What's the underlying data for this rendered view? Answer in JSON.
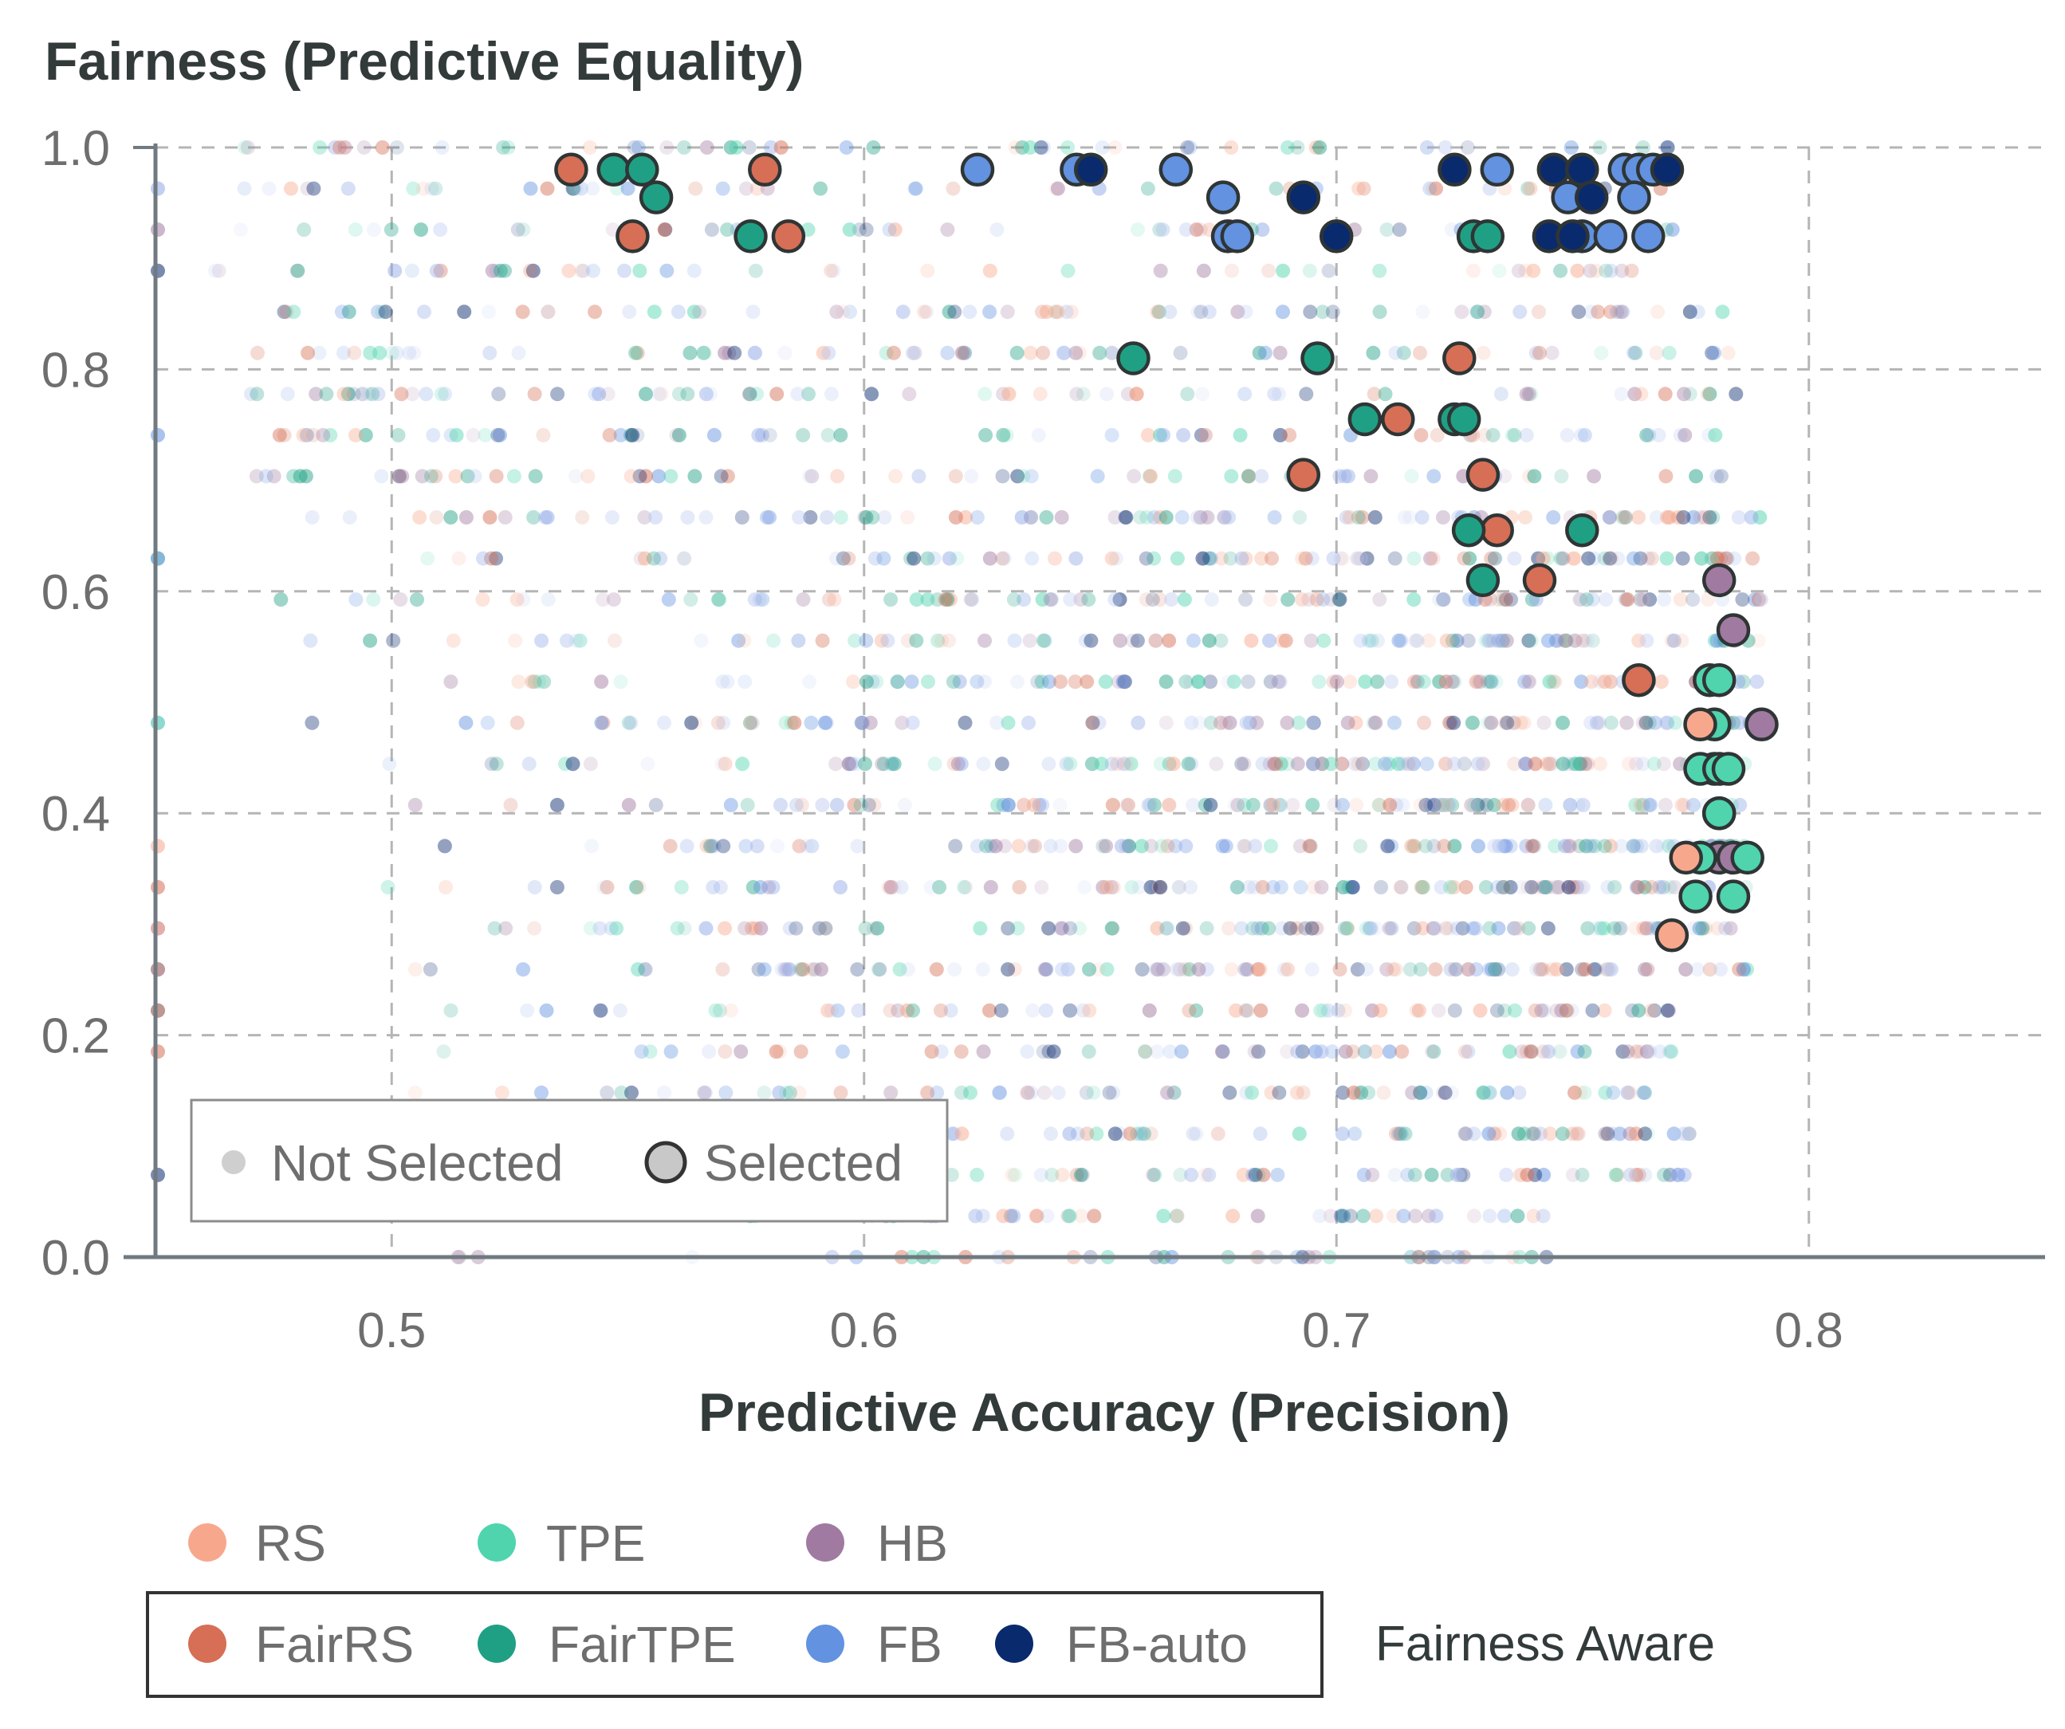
{
  "chart_data": {
    "type": "scatter",
    "title": "",
    "xlabel": "Predictive Accuracy (Precision)",
    "ylabel": "Fairness (Predictive Equality)",
    "xlim": [
      0.45,
      0.85
    ],
    "ylim": [
      0.0,
      1.0
    ],
    "x_ticks": [
      "0.5",
      "0.6",
      "0.7",
      "0.8"
    ],
    "y_ticks": [
      "0.0",
      "0.2",
      "0.4",
      "0.6",
      "0.8",
      "1.0"
    ],
    "grid": "dashed",
    "selection_legend": {
      "not_selected": "Not Selected",
      "selected": "Selected",
      "placement": "bottom-left"
    },
    "method_legend": {
      "row1": [
        {
          "name": "RS",
          "color": "#f7a88c"
        },
        {
          "name": "TPE",
          "color": "#4fd4ae"
        },
        {
          "name": "HB",
          "color": "#a07aa0"
        }
      ],
      "row2": [
        {
          "name": "FairRS",
          "color": "#d66f55"
        },
        {
          "name": "FairTPE",
          "color": "#1fa084"
        },
        {
          "name": "FB",
          "color": "#6292e0"
        },
        {
          "name": "FB-auto",
          "color": "#0a2a6e"
        }
      ],
      "fairness_aware_label": "Fairness Aware"
    },
    "selected_series": [
      {
        "name": "FairRS",
        "color": "#d66f55",
        "points": [
          [
            0.538,
            0.98
          ],
          [
            0.579,
            0.98
          ],
          [
            0.551,
            0.92
          ],
          [
            0.584,
            0.92
          ],
          [
            0.726,
            0.81
          ],
          [
            0.713,
            0.755
          ],
          [
            0.693,
            0.705
          ],
          [
            0.731,
            0.705
          ],
          [
            0.734,
            0.655
          ],
          [
            0.743,
            0.61
          ],
          [
            0.764,
            0.52
          ]
        ]
      },
      {
        "name": "FairTPE",
        "color": "#1fa084",
        "points": [
          [
            0.547,
            0.98
          ],
          [
            0.553,
            0.98
          ],
          [
            0.556,
            0.955
          ],
          [
            0.576,
            0.92
          ],
          [
            0.729,
            0.92
          ],
          [
            0.732,
            0.92
          ],
          [
            0.657,
            0.81
          ],
          [
            0.696,
            0.81
          ],
          [
            0.706,
            0.755
          ],
          [
            0.725,
            0.755
          ],
          [
            0.727,
            0.755
          ],
          [
            0.728,
            0.655
          ],
          [
            0.752,
            0.655
          ],
          [
            0.731,
            0.61
          ]
        ]
      },
      {
        "name": "FB",
        "color": "#6292e0",
        "points": [
          [
            0.624,
            0.98
          ],
          [
            0.645,
            0.98
          ],
          [
            0.666,
            0.98
          ],
          [
            0.734,
            0.98
          ],
          [
            0.761,
            0.98
          ],
          [
            0.764,
            0.98
          ],
          [
            0.767,
            0.98
          ],
          [
            0.676,
            0.955
          ],
          [
            0.749,
            0.955
          ],
          [
            0.763,
            0.955
          ],
          [
            0.677,
            0.92
          ],
          [
            0.679,
            0.92
          ],
          [
            0.752,
            0.92
          ],
          [
            0.758,
            0.92
          ],
          [
            0.766,
            0.92
          ]
        ]
      },
      {
        "name": "FB-auto",
        "color": "#0a2a6e",
        "points": [
          [
            0.648,
            0.98
          ],
          [
            0.725,
            0.98
          ],
          [
            0.746,
            0.98
          ],
          [
            0.752,
            0.98
          ],
          [
            0.77,
            0.98
          ],
          [
            0.693,
            0.955
          ],
          [
            0.754,
            0.955
          ],
          [
            0.7,
            0.92
          ],
          [
            0.745,
            0.92
          ],
          [
            0.75,
            0.92
          ]
        ]
      },
      {
        "name": "HB",
        "color": "#a07aa0",
        "points": [
          [
            0.781,
            0.61
          ],
          [
            0.784,
            0.565
          ],
          [
            0.79,
            0.48
          ],
          [
            0.78,
            0.44
          ],
          [
            0.781,
            0.4
          ],
          [
            0.781,
            0.36
          ],
          [
            0.784,
            0.36
          ]
        ]
      },
      {
        "name": "TPE",
        "color": "#4fd4ae",
        "points": [
          [
            0.779,
            0.52
          ],
          [
            0.781,
            0.52
          ],
          [
            0.78,
            0.48
          ],
          [
            0.777,
            0.44
          ],
          [
            0.781,
            0.44
          ],
          [
            0.783,
            0.44
          ],
          [
            0.781,
            0.4
          ],
          [
            0.777,
            0.36
          ],
          [
            0.787,
            0.36
          ],
          [
            0.776,
            0.325
          ],
          [
            0.784,
            0.325
          ]
        ]
      },
      {
        "name": "RS",
        "color": "#f7a88c",
        "points": [
          [
            0.777,
            0.48
          ],
          [
            0.774,
            0.36
          ],
          [
            0.771,
            0.29
          ]
        ]
      }
    ]
  }
}
